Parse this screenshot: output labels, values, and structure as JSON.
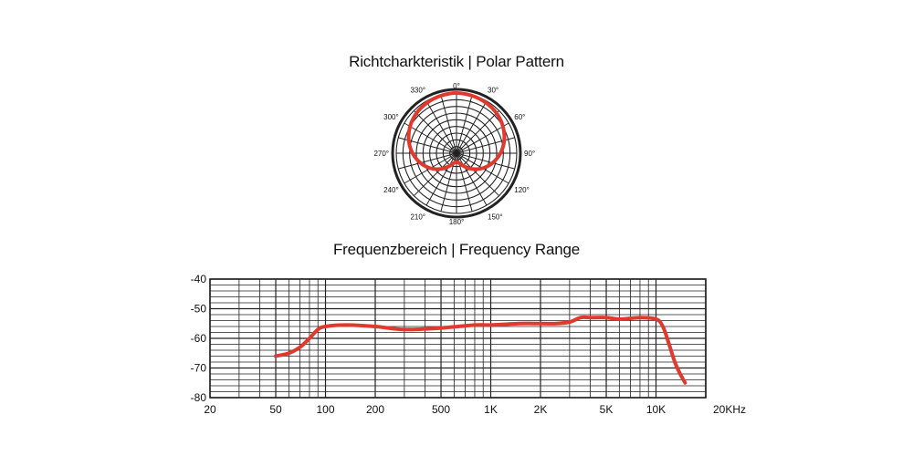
{
  "polar_title": "Richtcharkteristik | Polar Pattern",
  "freq_title": "Frequenzbereich | Frequency Range",
  "colors": {
    "curve": "#e03a2e",
    "grid": "#222222"
  },
  "chart_data": [
    {
      "type": "polar",
      "angle_labels": [
        "0°",
        "30°",
        "60°",
        "90°",
        "120°",
        "150°",
        "180°",
        "210°",
        "240°",
        "270°",
        "300°",
        "330°"
      ],
      "angles_deg": [
        0,
        30,
        60,
        90,
        120,
        150,
        180,
        210,
        240,
        270,
        300,
        330
      ],
      "rings": 9,
      "radial_spokes": 24,
      "pattern": "cardioid",
      "pattern_points": [
        {
          "angle": 0,
          "r": 1.0
        },
        {
          "angle": 15,
          "r": 0.99
        },
        {
          "angle": 30,
          "r": 0.97
        },
        {
          "angle": 45,
          "r": 0.94
        },
        {
          "angle": 60,
          "r": 0.89
        },
        {
          "angle": 75,
          "r": 0.82
        },
        {
          "angle": 90,
          "r": 0.73
        },
        {
          "angle": 105,
          "r": 0.62
        },
        {
          "angle": 120,
          "r": 0.5
        },
        {
          "angle": 135,
          "r": 0.37
        },
        {
          "angle": 150,
          "r": 0.25
        },
        {
          "angle": 165,
          "r": 0.17
        },
        {
          "angle": 180,
          "r": 0.14
        },
        {
          "angle": 195,
          "r": 0.17
        },
        {
          "angle": 210,
          "r": 0.25
        },
        {
          "angle": 225,
          "r": 0.37
        },
        {
          "angle": 240,
          "r": 0.5
        },
        {
          "angle": 255,
          "r": 0.62
        },
        {
          "angle": 270,
          "r": 0.73
        },
        {
          "angle": 285,
          "r": 0.82
        },
        {
          "angle": 300,
          "r": 0.89
        },
        {
          "angle": 315,
          "r": 0.94
        },
        {
          "angle": 330,
          "r": 0.97
        },
        {
          "angle": 345,
          "r": 0.99
        }
      ]
    },
    {
      "type": "line",
      "x_scale": "log",
      "xlim": [
        20,
        20000
      ],
      "ylim": [
        -80,
        -40
      ],
      "x_ticks": [
        {
          "value": 20,
          "label": "20"
        },
        {
          "value": 50,
          "label": "50"
        },
        {
          "value": 100,
          "label": "100"
        },
        {
          "value": 200,
          "label": "200"
        },
        {
          "value": 500,
          "label": "500"
        },
        {
          "value": 1000,
          "label": "1K"
        },
        {
          "value": 2000,
          "label": "2K"
        },
        {
          "value": 5000,
          "label": "5K"
        },
        {
          "value": 10000,
          "label": "10K"
        },
        {
          "value": 20000,
          "label": "20KHz"
        }
      ],
      "y_ticks": [
        {
          "value": -40,
          "label": "-40"
        },
        {
          "value": -50,
          "label": "-50"
        },
        {
          "value": -60,
          "label": "-60"
        },
        {
          "value": -70,
          "label": "-70"
        },
        {
          "value": -80,
          "label": "-80"
        }
      ],
      "grid": true,
      "series": [
        {
          "x": [
            50,
            60,
            70,
            80,
            90,
            100,
            130,
            200,
            300,
            500,
            800,
            1000,
            1500,
            2000,
            2500,
            3000,
            3500,
            4000,
            5000,
            6000,
            8000,
            10000,
            11000,
            12000,
            13000,
            14000,
            15000
          ],
          "y": [
            -66,
            -65,
            -63,
            -60,
            -57,
            -56,
            -55.5,
            -56,
            -57,
            -56.5,
            -55.5,
            -55.5,
            -55,
            -55,
            -55,
            -54.5,
            -53,
            -53,
            -53,
            -53.5,
            -53,
            -53.5,
            -56,
            -62,
            -68,
            -72,
            -75
          ]
        }
      ]
    }
  ]
}
